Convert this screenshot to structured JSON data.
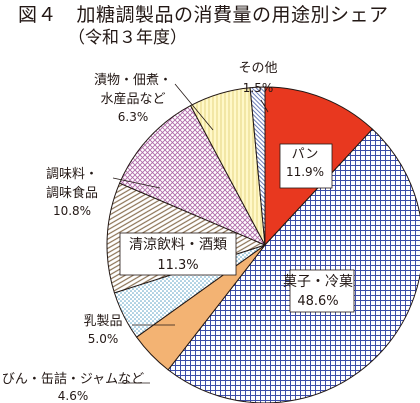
{
  "title": "図４　加糖調製品の消費量の用途別シェア",
  "subtitle": "（令和３年度）",
  "chart_data": {
    "type": "pie",
    "title": "図４　加糖調製品の消費量の用途別シェア",
    "subtitle": "（令和３年度）",
    "unit": "%",
    "slices": [
      {
        "label": "パン",
        "value": 11.9,
        "value_text": "11.9%",
        "color": "#e8381f",
        "pattern": "solid"
      },
      {
        "label": "菓子・冷菓",
        "value": 48.6,
        "value_text": "48.6%",
        "color": "#3d4ea8",
        "pattern": "grid"
      },
      {
        "label": "びん・缶詰・ジャムなど",
        "value": 4.6,
        "value_text": "4.6%",
        "color": "#f3b373",
        "pattern": "solid"
      },
      {
        "label": "乳製品",
        "value": 5.0,
        "value_text": "5.0%",
        "color": "#9dc9dc",
        "pattern": "dots"
      },
      {
        "label": "清涼飲料・酒類",
        "value": 11.3,
        "value_text": "11.3%",
        "color": "#b8a58a",
        "pattern": "diagonal"
      },
      {
        "label": "調味料・調味食品",
        "value": 10.8,
        "value_text": "10.8%",
        "color": "#c995c4",
        "pattern": "crosshatch"
      },
      {
        "label": "漬物・佃煮・水産品など",
        "value": 6.3,
        "value_text": "6.3%",
        "color": "#fff3b0",
        "pattern": "vertical"
      },
      {
        "label": "その他",
        "value": 1.5,
        "value_text": "1.5%",
        "color": "#9db0d8",
        "pattern": "diagonal"
      }
    ],
    "legend": "none"
  }
}
